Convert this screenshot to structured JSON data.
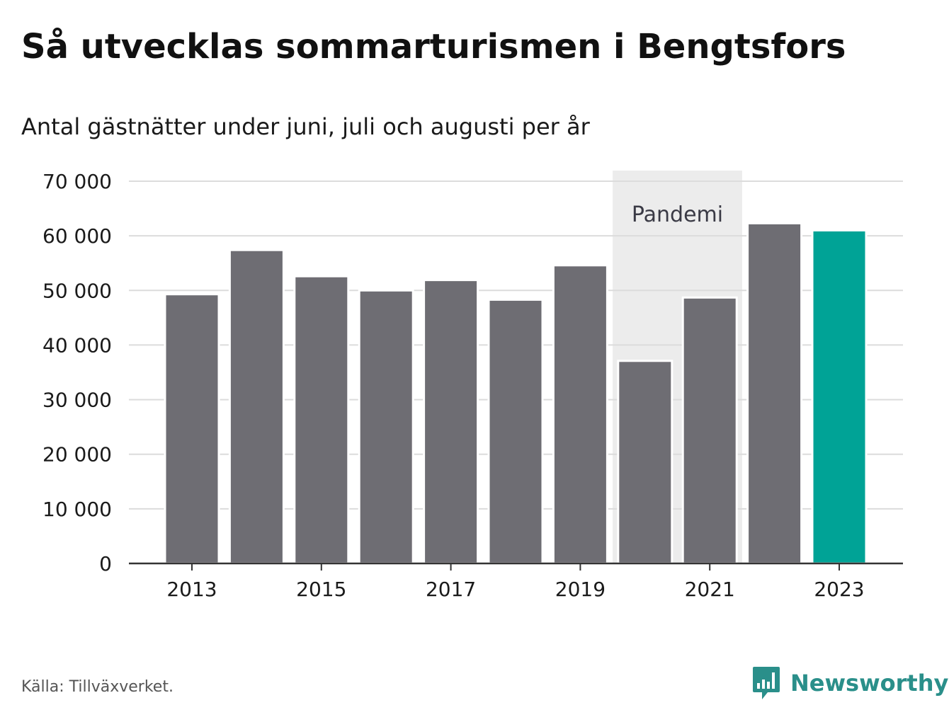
{
  "title": "Så utvecklas sommarturismen i Bengtsfors",
  "subtitle": "Antal gästnätter under juni, juli och augusti per år",
  "source": "Källa: Tillväxverket.",
  "brand": {
    "name": "Newsworthy",
    "icon": "newsworthy-logo-icon"
  },
  "colors": {
    "bar": "#6e6d73",
    "highlight": "#00a396",
    "pandemic_band": "#ececec",
    "grid": "#dcdcdc",
    "brand": "#2a8f8a"
  },
  "chart_data": {
    "type": "bar",
    "title": "Så utvecklas sommarturismen i Bengtsfors",
    "subtitle": "Antal gästnätter under juni, juli och augusti per år",
    "categories": [
      "2013",
      "2014",
      "2015",
      "2016",
      "2017",
      "2018",
      "2019",
      "2020",
      "2021",
      "2022",
      "2023"
    ],
    "values": [
      49300,
      57400,
      52600,
      50000,
      51900,
      48300,
      54600,
      37100,
      48700,
      62300,
      61000
    ],
    "highlight_category": "2023",
    "ylim": [
      0,
      70000
    ],
    "yticks": [
      0,
      10000,
      20000,
      30000,
      40000,
      50000,
      60000,
      70000
    ],
    "ytick_labels": [
      "0",
      "10 000",
      "20 000",
      "30 000",
      "40 000",
      "50 000",
      "60 000",
      "70 000"
    ],
    "xtick_labels": [
      "2013",
      "2015",
      "2017",
      "2019",
      "2021",
      "2023"
    ],
    "grid": true,
    "legend": "none",
    "annotation": {
      "label": "Pandemi",
      "from": "2020",
      "to": "2021"
    }
  }
}
